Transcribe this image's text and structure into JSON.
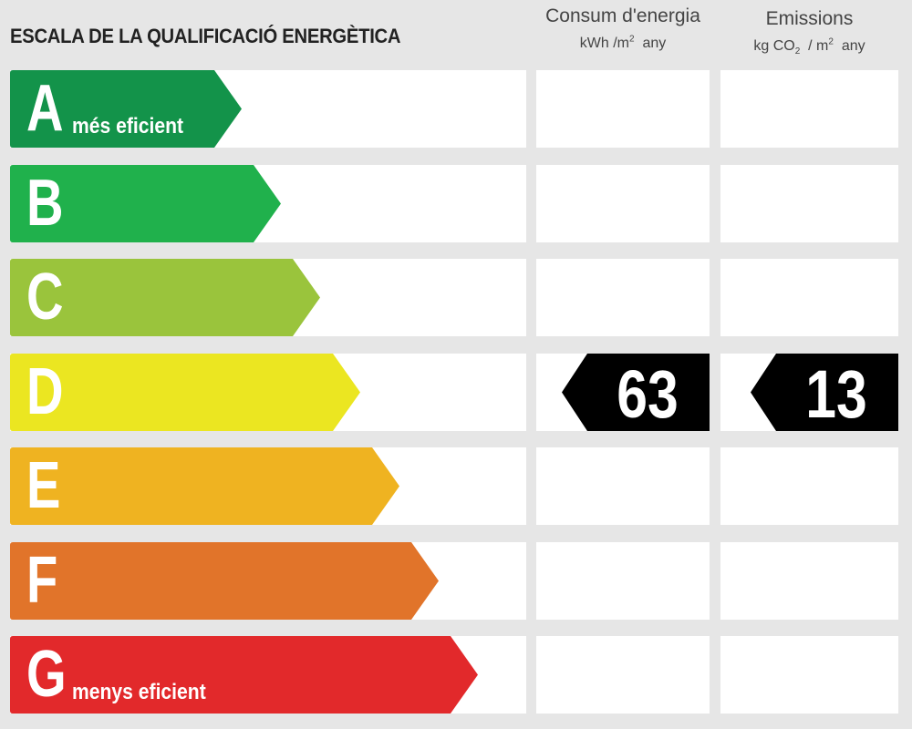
{
  "title": "ESCALA DE LA QUALIFICACIÓ ENERGÈTICA",
  "columns": {
    "energy": {
      "label": "Consum d'energia",
      "unit_a": "kWh /m",
      "unit_exp": "2",
      "unit_b": "any"
    },
    "emissions": {
      "label": "Emissions",
      "unit_a": "kg CO",
      "unit_sub": "2",
      "unit_b": "/ m",
      "unit_exp": "2",
      "unit_c": "any"
    }
  },
  "grades": [
    {
      "letter": "A",
      "sub": "més eficient",
      "color": "#13934a"
    },
    {
      "letter": "B",
      "sub": "",
      "color": "#20b14c"
    },
    {
      "letter": "C",
      "sub": "",
      "color": "#9ac43c"
    },
    {
      "letter": "D",
      "sub": "",
      "color": "#ebe621"
    },
    {
      "letter": "E",
      "sub": "",
      "color": "#efb321"
    },
    {
      "letter": "F",
      "sub": "",
      "color": "#e1742a"
    },
    {
      "letter": "G",
      "sub": "menys eficient",
      "color": "#e2292b"
    }
  ],
  "rating": {
    "grade": "D",
    "energy_value": "63",
    "emissions_value": "13",
    "marker_color": "#000000"
  }
}
